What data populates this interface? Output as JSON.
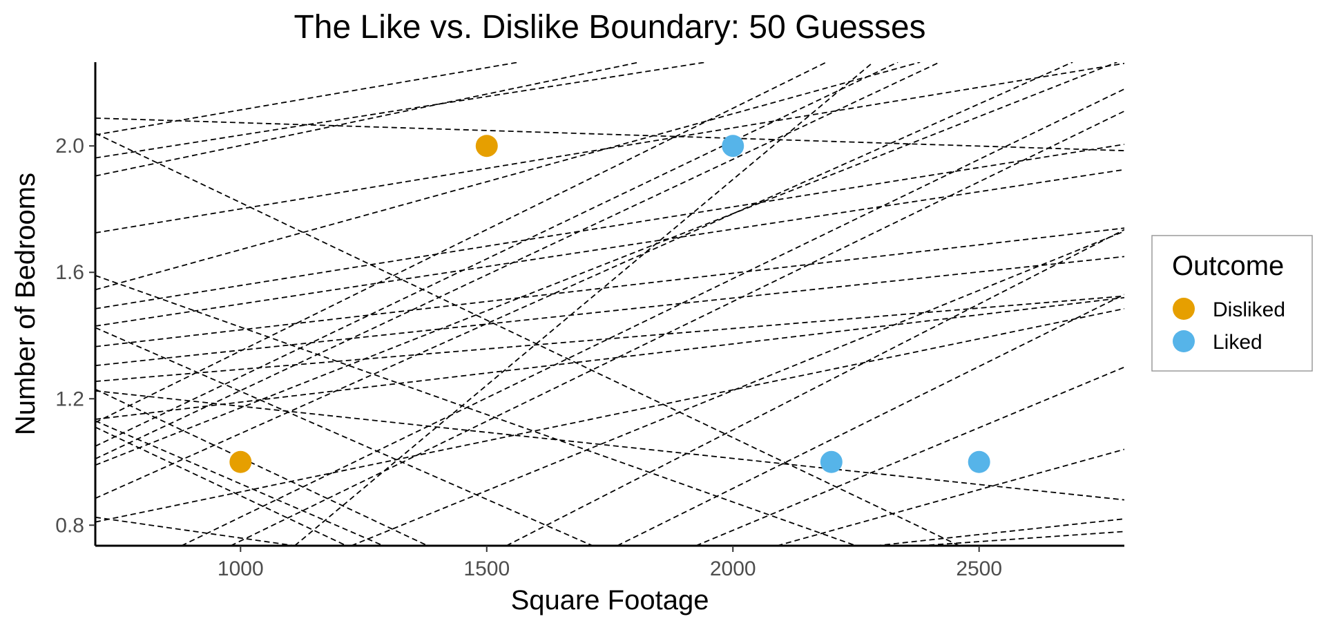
{
  "chart_data": {
    "type": "scatter",
    "title": "The Like vs. Dislike Boundary: 50 Guesses",
    "xlabel": "Square Footage",
    "ylabel": "Number of Bedrooms",
    "xlim": [
      705,
      2795
    ],
    "ylim": [
      0.735,
      2.265
    ],
    "x_ticks": [
      1000,
      1500,
      2000,
      2500
    ],
    "x_tick_labels": [
      "1000",
      "1500",
      "2000",
      "2500"
    ],
    "y_ticks": [
      0.8,
      1.2,
      1.6,
      2.0
    ],
    "y_tick_labels": [
      "0.8",
      "1.2",
      "1.6",
      "2.0"
    ],
    "grid": false,
    "legend": {
      "title": "Outcome",
      "placement": "right",
      "entries": [
        {
          "label": "Disliked",
          "color": "#E69F00"
        },
        {
          "label": "Liked",
          "color": "#56B4E9"
        }
      ]
    },
    "points": [
      {
        "x": 1000,
        "y": 1.0,
        "outcome": "Disliked"
      },
      {
        "x": 1500,
        "y": 2.0,
        "outcome": "Disliked"
      },
      {
        "x": 2000,
        "y": 2.0,
        "outcome": "Liked"
      },
      {
        "x": 2200,
        "y": 1.0,
        "outcome": "Liked"
      },
      {
        "x": 2500,
        "y": 1.0,
        "outcome": "Liked"
      }
    ],
    "boundary_lines": [
      [
        705,
        2.088,
        2795,
        1.985
      ],
      [
        705,
        2.035,
        1565,
        2.265
      ],
      [
        705,
        1.962,
        1945,
        2.265
      ],
      [
        705,
        1.905,
        1810,
        2.265
      ],
      [
        705,
        1.725,
        2810,
        2.265
      ],
      [
        705,
        1.545,
        2380,
        2.265
      ],
      [
        705,
        1.485,
        2795,
        2.005
      ],
      [
        705,
        1.43,
        2795,
        1.925
      ],
      [
        705,
        1.365,
        2795,
        1.74
      ],
      [
        705,
        1.305,
        2795,
        1.65
      ],
      [
        705,
        1.255,
        2795,
        1.525
      ],
      [
        705,
        1.225,
        2795,
        0.88
      ],
      [
        705,
        1.135,
        2795,
        1.52
      ],
      [
        705,
        1.125,
        2190,
        2.265
      ],
      [
        705,
        1.05,
        2335,
        2.265
      ],
      [
        705,
        1.01,
        2420,
        2.265
      ],
      [
        705,
        0.99,
        2780,
        2.265
      ],
      [
        705,
        0.885,
        2690,
        2.265
      ],
      [
        705,
        0.81,
        2795,
        1.485
      ],
      [
        705,
        2.04,
        2460,
        0.735
      ],
      [
        705,
        1.59,
        2250,
        0.735
      ],
      [
        705,
        1.425,
        1715,
        0.735
      ],
      [
        705,
        1.23,
        1380,
        0.735
      ],
      [
        705,
        1.13,
        1290,
        0.735
      ],
      [
        705,
        1.11,
        1215,
        0.735
      ],
      [
        705,
        0.825,
        1110,
        0.735
      ],
      [
        980,
        0.735,
        2795,
        2.11
      ],
      [
        1110,
        0.735,
        2285,
        2.265
      ],
      [
        1225,
        0.735,
        2795,
        1.73
      ],
      [
        1540,
        0.735,
        2795,
        1.735
      ],
      [
        1765,
        0.735,
        2795,
        1.53
      ],
      [
        1925,
        0.735,
        2795,
        1.3
      ],
      [
        2090,
        0.735,
        2795,
        1.04
      ],
      [
        2290,
        0.735,
        2795,
        0.82
      ],
      [
        2380,
        0.735,
        2795,
        0.78
      ],
      [
        880,
        0.735,
        2795,
        2.18
      ]
    ]
  }
}
